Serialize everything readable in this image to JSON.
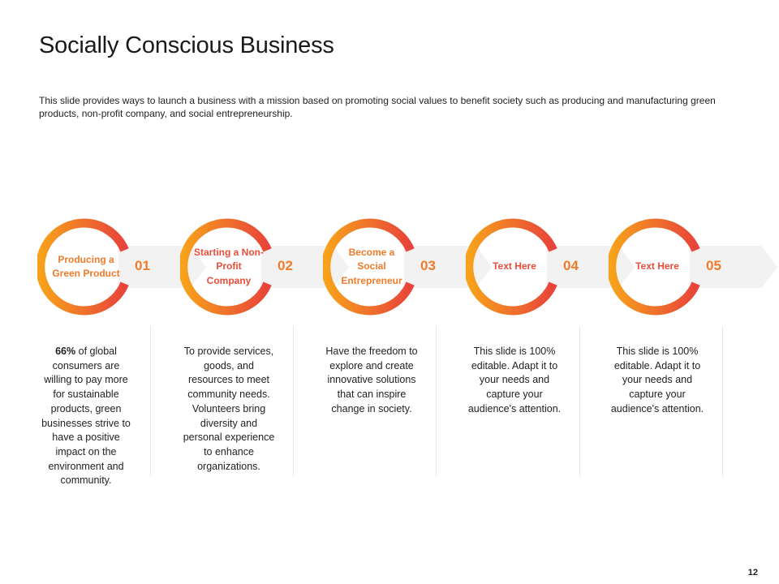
{
  "title": "Socially Conscious Business",
  "subtitle": "This slide provides ways to launch a business with a mission based  on promoting social values to benefit society such as producing and manufacturing green products, non-profit company, and social entrepreneurship.",
  "colors": {
    "ring_start": "#f7a21b",
    "ring_end": "#e8443a",
    "arrow": "#f2f2f2",
    "label_orange": "#f07b2a",
    "label_red": "#e94e3a"
  },
  "steps": [
    {
      "number": "01",
      "label": "Producing a Green Product",
      "desc_highlight": "66%",
      "desc": " of global consumers are willing to pay more for sustainable products, green businesses strive to have a positive impact on the environment and community."
    },
    {
      "number": "02",
      "label": "Starting a Non-Profit Company",
      "desc_highlight": "",
      "desc": "To provide services, goods, and resources to meet community needs. Volunteers bring diversity and personal experience to enhance organizations."
    },
    {
      "number": "03",
      "label": "Become a Social Entrepreneur",
      "desc_highlight": "",
      "desc": "Have the freedom to explore and create innovative solutions that can inspire change in society."
    },
    {
      "number": "04",
      "label": "Text Here",
      "desc_highlight": "",
      "desc": "This slide is 100% editable. Adapt it to your needs and capture your audience's attention."
    },
    {
      "number": "05",
      "label": "Text Here",
      "desc_highlight": "",
      "desc": "This slide is 100% editable. Adapt it to your needs and capture your audience's attention."
    }
  ],
  "page_number": "12"
}
